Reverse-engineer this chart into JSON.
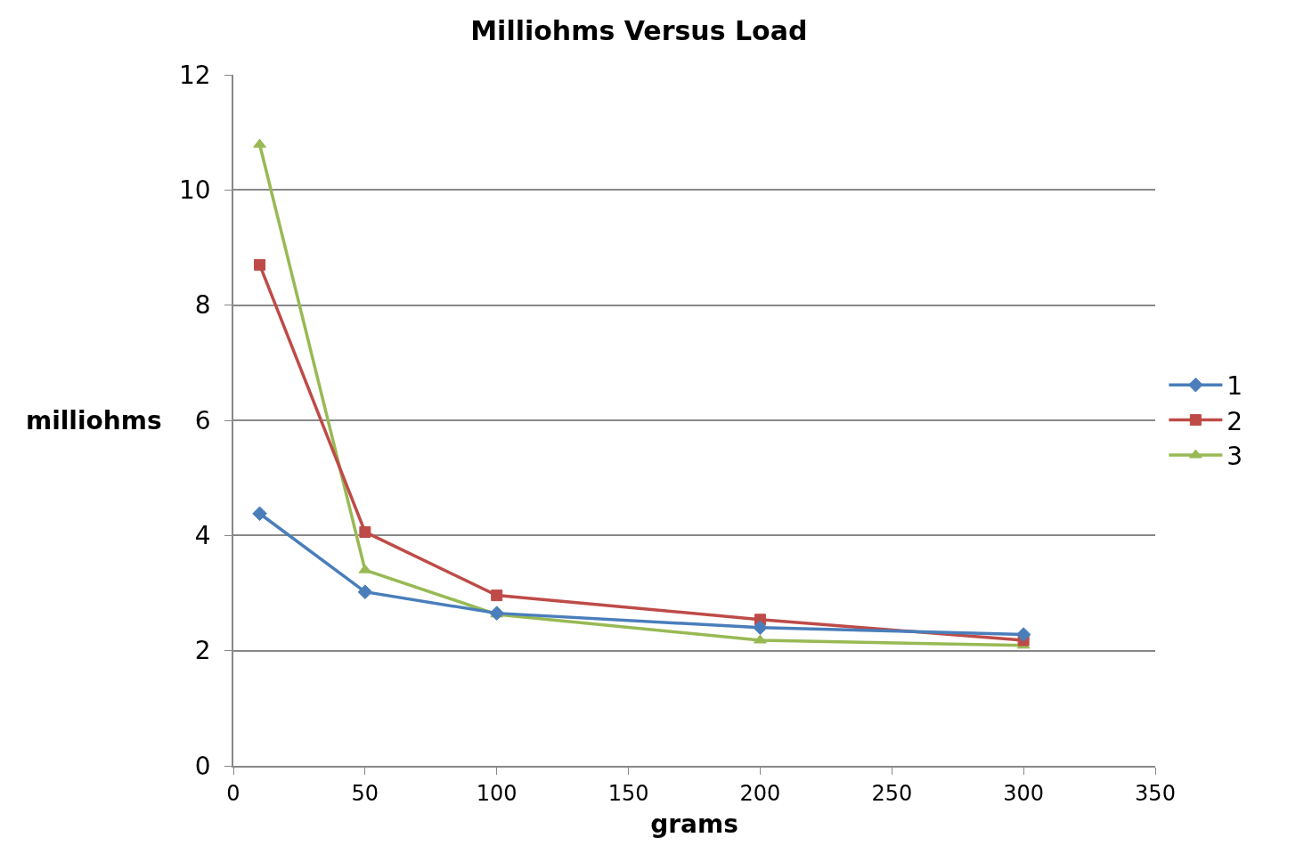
{
  "chart_data": {
    "type": "line",
    "title": "Milliohms Versus Load",
    "xlabel": "grams",
    "ylabel": "milliohms",
    "x": [
      10,
      50,
      100,
      200,
      300
    ],
    "series": [
      {
        "name": "1",
        "color": "#4a7ebb",
        "marker": "diamond",
        "values": [
          4.38,
          3.02,
          2.65,
          2.4,
          2.28
        ]
      },
      {
        "name": "2",
        "color": "#be4b48",
        "marker": "square",
        "values": [
          8.7,
          4.06,
          2.96,
          2.54,
          2.18
        ]
      },
      {
        "name": "3",
        "color": "#98b954",
        "marker": "triangle",
        "values": [
          10.79,
          3.4,
          2.63,
          2.18,
          2.09
        ]
      }
    ],
    "xlim": [
      0,
      350
    ],
    "xticks": [
      0,
      50,
      100,
      150,
      200,
      250,
      300,
      350
    ],
    "ylim": [
      0,
      12
    ],
    "yticks": [
      0,
      2,
      4,
      6,
      8,
      10,
      12
    ],
    "grid": "y",
    "legend": "right",
    "line_style": "solid"
  }
}
